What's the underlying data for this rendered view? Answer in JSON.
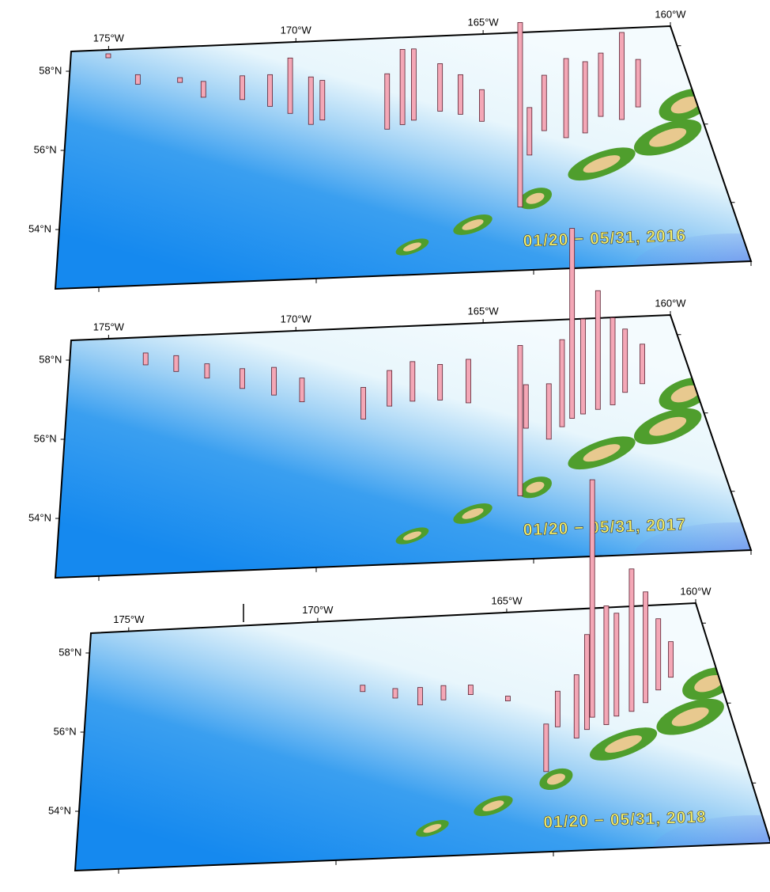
{
  "lon_ticks": [
    {
      "value": -175,
      "label": "175°W"
    },
    {
      "value": -170,
      "label": "170°W"
    },
    {
      "value": -165,
      "label": "165°W"
    },
    {
      "value": -160,
      "label": "160°W"
    }
  ],
  "lat_ticks": [
    {
      "value": 58,
      "label": "58°N"
    },
    {
      "value": 56,
      "label": "56°N"
    },
    {
      "value": 54,
      "label": "54°N"
    }
  ],
  "panels": [
    {
      "label": "01/20 − 05/31, 2016",
      "bars": [
        [
          -175.0,
          58.3,
          5
        ],
        [
          -174.2,
          57.6,
          12
        ],
        [
          -173.1,
          57.6,
          6
        ],
        [
          -172.5,
          57.2,
          20
        ],
        [
          -171.5,
          57.1,
          30
        ],
        [
          -170.8,
          56.9,
          40
        ],
        [
          -170.3,
          56.7,
          70
        ],
        [
          -169.8,
          56.4,
          60
        ],
        [
          -169.5,
          56.5,
          50
        ],
        [
          -167.9,
          56.2,
          70
        ],
        [
          -167.5,
          56.3,
          95
        ],
        [
          -167.2,
          56.4,
          90
        ],
        [
          -166.5,
          56.6,
          60
        ],
        [
          -166.0,
          56.5,
          50
        ],
        [
          -165.5,
          56.3,
          40
        ],
        [
          -165.0,
          54.1,
          233
        ],
        [
          -164.5,
          55.4,
          60
        ],
        [
          -164.0,
          56.0,
          70
        ],
        [
          -163.5,
          55.8,
          100
        ],
        [
          -163.0,
          55.9,
          90
        ],
        [
          -162.5,
          56.3,
          80
        ],
        [
          -162.0,
          56.2,
          110
        ],
        [
          -161.5,
          56.5,
          60
        ]
      ]
    },
    {
      "label": "01/20 − 05/31, 2017",
      "bars": [
        [
          -174.0,
          57.8,
          15
        ],
        [
          -173.2,
          57.6,
          20
        ],
        [
          -172.4,
          57.4,
          18
        ],
        [
          -171.5,
          57.1,
          25
        ],
        [
          -170.7,
          56.9,
          35
        ],
        [
          -170.0,
          56.7,
          30
        ],
        [
          -168.5,
          56.2,
          40
        ],
        [
          -167.8,
          56.5,
          45
        ],
        [
          -167.2,
          56.6,
          50
        ],
        [
          -166.5,
          56.6,
          45
        ],
        [
          -165.8,
          56.5,
          55
        ],
        [
          -165.0,
          54.1,
          190
        ],
        [
          -164.5,
          55.8,
          55
        ],
        [
          -164.0,
          55.5,
          70
        ],
        [
          -163.6,
          55.8,
          110
        ],
        [
          -163.3,
          56.0,
          240
        ],
        [
          -163.0,
          56.1,
          120
        ],
        [
          -162.6,
          56.2,
          150
        ],
        [
          -162.2,
          56.3,
          110
        ],
        [
          -161.8,
          56.6,
          80
        ],
        [
          -161.3,
          56.8,
          50
        ]
      ]
    },
    {
      "label": "01/20 − 05/31, 2018",
      "bars": [
        [
          -169.0,
          56.7,
          8
        ],
        [
          -168.2,
          56.5,
          12
        ],
        [
          -167.6,
          56.3,
          22
        ],
        [
          -167.0,
          56.4,
          18
        ],
        [
          -166.3,
          56.5,
          12
        ],
        [
          -165.4,
          56.3,
          6
        ],
        [
          -164.8,
          54.5,
          60
        ],
        [
          -164.3,
          55.6,
          45
        ],
        [
          -163.9,
          55.3,
          80
        ],
        [
          -163.6,
          55.5,
          120
        ],
        [
          -163.4,
          55.8,
          300
        ],
        [
          -163.1,
          55.6,
          150
        ],
        [
          -162.8,
          55.8,
          130
        ],
        [
          -162.4,
          55.9,
          180
        ],
        [
          -162.0,
          56.1,
          140
        ],
        [
          -161.6,
          56.4,
          90
        ],
        [
          -161.2,
          56.7,
          45
        ]
      ]
    }
  ]
}
